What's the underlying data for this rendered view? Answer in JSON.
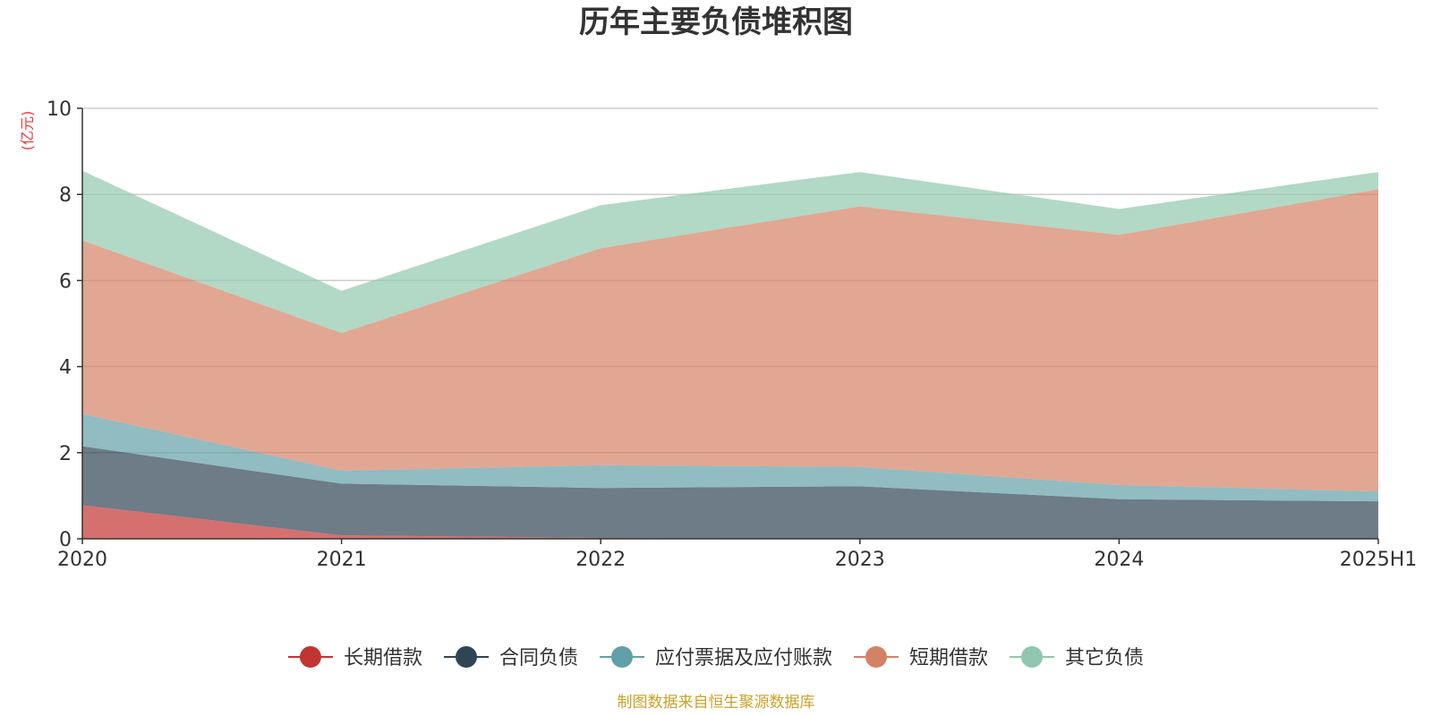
{
  "chart_data": {
    "type": "area",
    "stacked": true,
    "title": "历年主要负债堆积图",
    "unit": "(亿元)",
    "source": "制图数据来自恒生聚源数据库",
    "categories": [
      "2020",
      "2021",
      "2022",
      "2023",
      "2024",
      "2025H1"
    ],
    "ylim": [
      0,
      10
    ],
    "yticks": [
      0,
      2,
      4,
      6,
      8,
      10
    ],
    "grid": true,
    "legend_position": "bottom-center",
    "series": [
      {
        "name": "长期借款",
        "color": "#c23531",
        "values": [
          0.78,
          0.08,
          0.02,
          0.0,
          0.0,
          0.0
        ]
      },
      {
        "name": "合同负债",
        "color": "#2f4554",
        "values": [
          1.37,
          1.2,
          1.16,
          1.22,
          0.92,
          0.87
        ]
      },
      {
        "name": "应付票据及应付账款",
        "color": "#61a0a8",
        "values": [
          0.75,
          0.3,
          0.53,
          0.45,
          0.33,
          0.23
        ]
      },
      {
        "name": "短期借款",
        "color": "#d48265",
        "values": [
          4.03,
          3.2,
          5.04,
          6.05,
          5.81,
          7.02
        ]
      },
      {
        "name": "其它负债",
        "color": "#91c7ae",
        "values": [
          1.62,
          0.98,
          1.0,
          0.8,
          0.6,
          0.4
        ]
      }
    ]
  }
}
